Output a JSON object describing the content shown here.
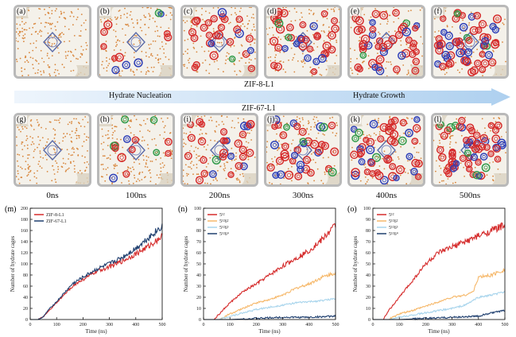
{
  "labels": {
    "zif8": "ZIF-8-L1",
    "zif67": "ZIF-67-L1",
    "nucleation": "Hydrate Nucleation",
    "growth": "Hydrate Growth"
  },
  "panels_top": [
    "(a)",
    "(b)",
    "(c)",
    "(d)",
    "(e)",
    "(f)"
  ],
  "panels_bottom": [
    "(g)",
    "(h)",
    "(i)",
    "(j)",
    "(k)",
    "(l)"
  ],
  "times": [
    "0ns",
    "100ns",
    "200ns",
    "300ns",
    "400ns",
    "500ns"
  ],
  "colors": {
    "red": "#d52b2b",
    "blue": "#2d3fb8",
    "green": "#2f9a48",
    "orange": "#f6b86a",
    "lightblue": "#a7d4ec",
    "navy": "#1f3f6f",
    "water": "#d8863c",
    "frame": "#b9b9b9",
    "banner": "#dbe9f7"
  },
  "chart_data": [
    {
      "type": "line",
      "panel_label": "(m)",
      "xlabel": "Time (ns)",
      "ylabel": "Number of hydrate cages",
      "xlim": [
        0,
        500
      ],
      "ylim": [
        0,
        200
      ],
      "xticks": [
        0,
        100,
        200,
        300,
        400,
        500
      ],
      "yticks": [
        0,
        20,
        40,
        60,
        80,
        100,
        120,
        140,
        160,
        180,
        200
      ],
      "legend_position": "top-left",
      "series": [
        {
          "name": "ZIF-8-L1",
          "color": "#d52b2b",
          "x": [
            0,
            30,
            50,
            70,
            100,
            130,
            160,
            200,
            250,
            300,
            350,
            400,
            450,
            500
          ],
          "values": [
            0,
            0,
            5,
            15,
            30,
            45,
            60,
            72,
            86,
            95,
            105,
            118,
            132,
            150
          ]
        },
        {
          "name": "ZIF-67-L1",
          "color": "#1f3f6f",
          "x": [
            0,
            30,
            50,
            70,
            100,
            130,
            160,
            200,
            250,
            300,
            350,
            400,
            450,
            500
          ],
          "values": [
            0,
            0,
            5,
            18,
            32,
            48,
            64,
            76,
            90,
            100,
            112,
            128,
            148,
            168
          ]
        }
      ]
    },
    {
      "type": "line",
      "panel_label": "(n)",
      "xlabel": "Time (ns)",
      "ylabel": "Number of hydrate cages",
      "xlim": [
        0,
        500
      ],
      "ylim": [
        0,
        100
      ],
      "xticks": [
        0,
        100,
        200,
        300,
        400,
        500
      ],
      "yticks": [
        0,
        10,
        20,
        30,
        40,
        50,
        60,
        70,
        80,
        90,
        100
      ],
      "legend_position": "top-left",
      "series": [
        {
          "name": "5¹²",
          "color": "#d52b2b",
          "x": [
            0,
            40,
            60,
            100,
            150,
            200,
            250,
            300,
            350,
            400,
            450,
            500
          ],
          "values": [
            0,
            0,
            5,
            15,
            25,
            32,
            40,
            48,
            55,
            62,
            72,
            85
          ]
        },
        {
          "name": "5¹²6²",
          "color": "#f6b86a",
          "x": [
            0,
            60,
            100,
            150,
            200,
            250,
            300,
            350,
            400,
            450,
            500
          ],
          "values": [
            0,
            0,
            5,
            10,
            15,
            18,
            22,
            28,
            32,
            38,
            42
          ]
        },
        {
          "name": "5¹²6³",
          "color": "#a7d4ec",
          "x": [
            0,
            60,
            100,
            150,
            200,
            250,
            300,
            350,
            400,
            450,
            500
          ],
          "values": [
            0,
            0,
            3,
            6,
            9,
            11,
            13,
            15,
            16,
            17,
            19
          ]
        },
        {
          "name": "5¹²6⁴",
          "color": "#1f3f6f",
          "x": [
            0,
            100,
            200,
            300,
            400,
            500
          ],
          "values": [
            0,
            0,
            1,
            2,
            2,
            3
          ]
        }
      ]
    },
    {
      "type": "line",
      "panel_label": "(o)",
      "xlabel": "Time (ns)",
      "ylabel": "Number of hydrate cages",
      "xlim": [
        0,
        500
      ],
      "ylim": [
        0,
        100
      ],
      "xticks": [
        0,
        100,
        200,
        300,
        400,
        500
      ],
      "yticks": [
        0,
        10,
        20,
        30,
        40,
        50,
        60,
        70,
        80,
        90,
        100
      ],
      "legend_position": "top-left",
      "series": [
        {
          "name": "5¹²",
          "color": "#d52b2b",
          "x": [
            0,
            40,
            60,
            100,
            150,
            200,
            250,
            300,
            350,
            400,
            450,
            500
          ],
          "values": [
            0,
            0,
            8,
            20,
            35,
            50,
            60,
            65,
            70,
            75,
            80,
            85
          ]
        },
        {
          "name": "5¹²6²",
          "color": "#f6b86a",
          "x": [
            0,
            60,
            100,
            150,
            200,
            250,
            300,
            350,
            380,
            400,
            450,
            500
          ],
          "values": [
            0,
            0,
            5,
            8,
            12,
            16,
            20,
            22,
            25,
            38,
            40,
            45
          ]
        },
        {
          "name": "5¹²6³",
          "color": "#a7d4ec",
          "x": [
            0,
            60,
            100,
            150,
            200,
            250,
            300,
            350,
            400,
            450,
            500
          ],
          "values": [
            0,
            0,
            2,
            4,
            6,
            8,
            10,
            13,
            20,
            22,
            25
          ]
        },
        {
          "name": "5¹²6⁴",
          "color": "#1f3f6f",
          "x": [
            0,
            100,
            200,
            300,
            400,
            450,
            500
          ],
          "values": [
            0,
            0,
            1,
            2,
            3,
            6,
            8
          ]
        }
      ]
    }
  ]
}
